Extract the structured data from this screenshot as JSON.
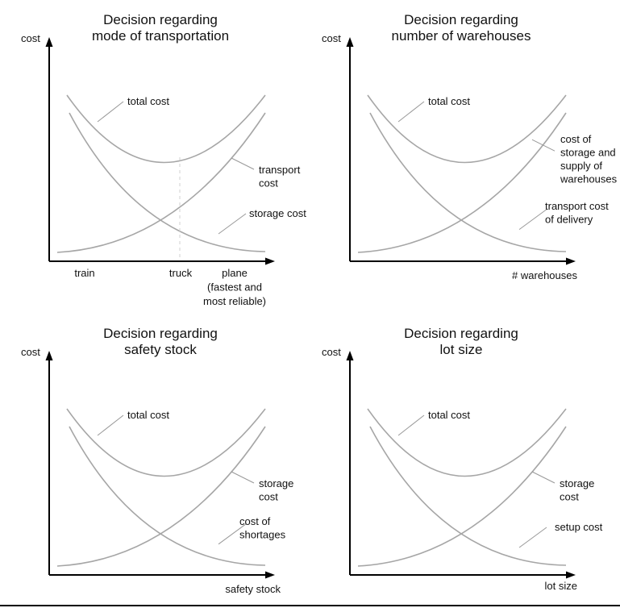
{
  "colors": {
    "curve": "#a6a6a6",
    "axis": "#000000",
    "leader": "#999999",
    "bottom_rule": "#000000"
  },
  "panels": [
    {
      "title": [
        "Decision regarding",
        "mode of transportation"
      ],
      "ylabel": "cost",
      "xlabel": "",
      "ticks": [
        {
          "lines": [
            "train"
          ]
        },
        {
          "lines": [
            "truck"
          ]
        },
        {
          "lines": [
            "plane",
            "(fastest and",
            "most reliable)"
          ]
        }
      ],
      "curves": [
        {
          "lines": [
            "total cost"
          ]
        },
        {
          "lines": [
            "transport",
            "cost"
          ]
        },
        {
          "lines": [
            "storage cost"
          ]
        }
      ]
    },
    {
      "title": [
        "Decision regarding",
        "number of warehouses"
      ],
      "ylabel": "cost",
      "xlabel": "# warehouses",
      "ticks": [],
      "curves": [
        {
          "lines": [
            "total cost"
          ]
        },
        {
          "lines": [
            "cost of",
            "storage and",
            "supply of",
            "warehouses"
          ]
        },
        {
          "lines": [
            "transport cost",
            "of delivery"
          ]
        }
      ]
    },
    {
      "title": [
        "Decision regarding",
        "safety stock"
      ],
      "ylabel": "cost",
      "xlabel": "safety stock",
      "ticks": [],
      "curves": [
        {
          "lines": [
            "total cost"
          ]
        },
        {
          "lines": [
            "storage",
            "cost"
          ]
        },
        {
          "lines": [
            "cost of",
            "shortages"
          ]
        }
      ]
    },
    {
      "title": [
        "Decision regarding",
        "lot size"
      ],
      "ylabel": "cost",
      "xlabel": "lot size",
      "ticks": [],
      "curves": [
        {
          "lines": [
            "total cost"
          ]
        },
        {
          "lines": [
            "storage",
            "cost"
          ]
        },
        {
          "lines": [
            "setup cost"
          ]
        }
      ]
    }
  ]
}
